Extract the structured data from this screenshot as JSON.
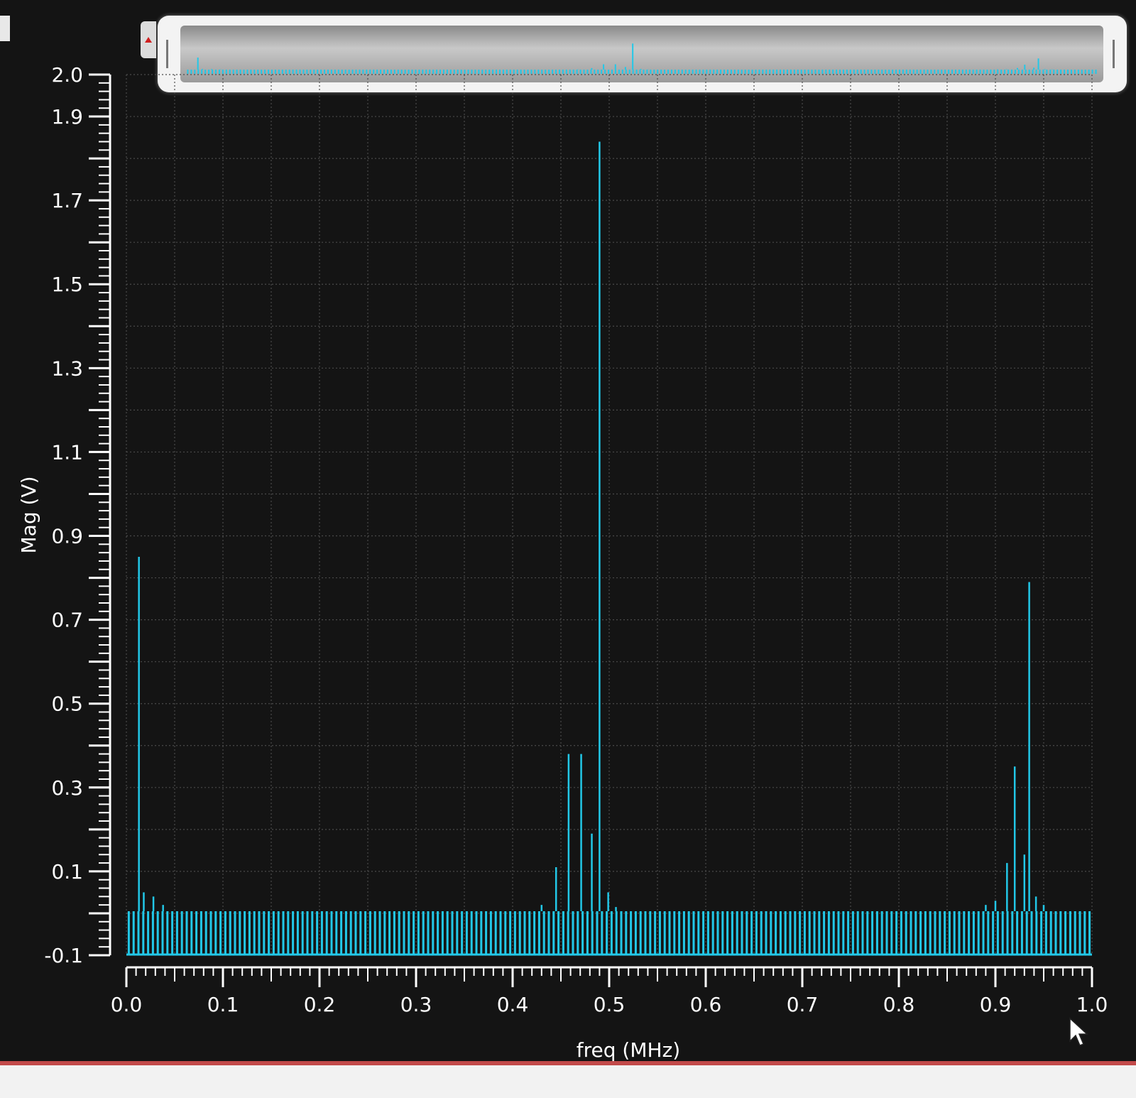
{
  "chart_data": {
    "type": "bar",
    "xlabel": "freq (MHz)",
    "ylabel": "Mag (V)",
    "xlim": [
      0.0,
      1.0
    ],
    "ylim": [
      -0.1,
      2.0
    ],
    "x_ticks": [
      "0.0",
      "0.1",
      "0.2",
      "0.3",
      "0.4",
      "0.5",
      "0.6",
      "0.7",
      "0.8",
      "0.9",
      "1.0"
    ],
    "y_ticks": [
      "2.0",
      "1.9",
      "1.7",
      "1.5",
      "1.3",
      "1.1",
      "0.9",
      "0.7",
      "0.5",
      "0.3",
      "0.1",
      "-0.1"
    ],
    "grid": true,
    "noise_floor": 0.005,
    "peaks": [
      {
        "x": 0.013,
        "y": 0.85
      },
      {
        "x": 0.018,
        "y": 0.05
      },
      {
        "x": 0.028,
        "y": 0.04
      },
      {
        "x": 0.038,
        "y": 0.02
      },
      {
        "x": 0.43,
        "y": 0.02
      },
      {
        "x": 0.445,
        "y": 0.11
      },
      {
        "x": 0.458,
        "y": 0.38
      },
      {
        "x": 0.471,
        "y": 0.38
      },
      {
        "x": 0.482,
        "y": 0.19
      },
      {
        "x": 0.49,
        "y": 1.84
      },
      {
        "x": 0.499,
        "y": 0.05
      },
      {
        "x": 0.507,
        "y": 0.015
      },
      {
        "x": 0.89,
        "y": 0.02
      },
      {
        "x": 0.9,
        "y": 0.03
      },
      {
        "x": 0.912,
        "y": 0.12
      },
      {
        "x": 0.92,
        "y": 0.35
      },
      {
        "x": 0.93,
        "y": 0.14
      },
      {
        "x": 0.935,
        "y": 0.79
      },
      {
        "x": 0.942,
        "y": 0.04
      },
      {
        "x": 0.95,
        "y": 0.02
      }
    ]
  },
  "colors": {
    "trace": "#22c8e8",
    "background": "#141414",
    "grid": "#4a4a4a",
    "axis": "#ffffff"
  },
  "icons": {
    "scroll_left": "left-arrow-icon",
    "cursor": "mouse-pointer-icon"
  }
}
